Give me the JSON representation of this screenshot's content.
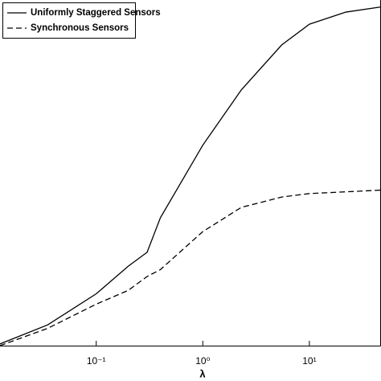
{
  "chart_data": {
    "type": "line",
    "x_label": "λ",
    "log_x": true,
    "xlim": [
      0.0125,
      47
    ],
    "ylim": [
      0,
      1
    ],
    "xticks": [
      {
        "value": 0.1,
        "label": "10⁻¹"
      },
      {
        "value": 1,
        "label": "10⁰"
      },
      {
        "value": 10,
        "label": "10¹"
      }
    ],
    "x": [
      0.0125,
      0.035,
      0.1,
      0.2,
      0.3,
      0.4,
      1,
      2.3,
      5.5,
      10,
      22,
      47
    ],
    "legend": "upper left",
    "series": [
      {
        "name": "Uniformly Staggered Sensors",
        "color": "#000000",
        "dash": "solid",
        "values": [
          0.005,
          0.06,
          0.15,
          0.23,
          0.27,
          0.37,
          0.58,
          0.74,
          0.87,
          0.93,
          0.965,
          0.98
        ]
      },
      {
        "name": "Synchronous Sensors",
        "color": "#000000",
        "dash": "dashed",
        "values": [
          0,
          0.05,
          0.12,
          0.16,
          0.2,
          0.22,
          0.33,
          0.4,
          0.43,
          0.44,
          0.445,
          0.45
        ]
      }
    ]
  }
}
